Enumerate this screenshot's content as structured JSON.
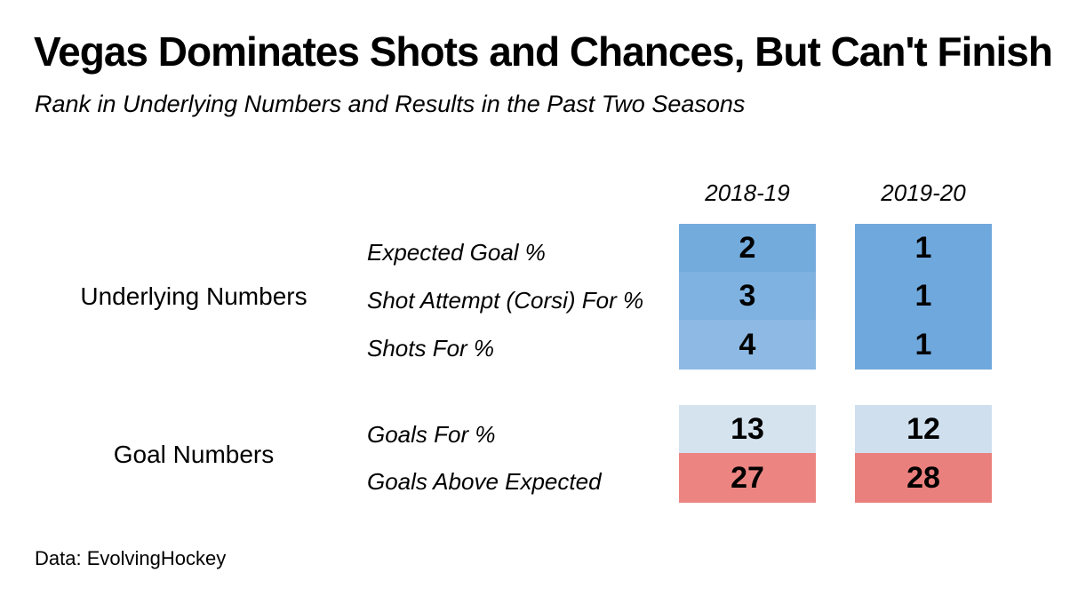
{
  "title": "Vegas Dominates Shots and Chances, But Can't Finish",
  "subtitle": "Rank in Underlying Numbers and Results in the Past Two Seasons",
  "source": "Data: EvolvingHockey",
  "chart_data": {
    "type": "table",
    "columns": [
      "2018-19",
      "2019-20"
    ],
    "groups": [
      {
        "name": "Underlying Numbers",
        "rows": [
          {
            "label": "Expected Goal %",
            "values": [
              2,
              1
            ]
          },
          {
            "label": "Shot Attempt (Corsi) For %",
            "values": [
              3,
              1
            ]
          },
          {
            "label": "Shots For %",
            "values": [
              4,
              1
            ]
          }
        ]
      },
      {
        "name": "Goal Numbers",
        "rows": [
          {
            "label": "Goals For %",
            "values": [
              13,
              12
            ]
          },
          {
            "label": "Goals Above Expected",
            "values": [
              27,
              28
            ]
          }
        ]
      }
    ],
    "colors": {
      "rank_1": "#6fa8dc",
      "rank_2": "#73abdd",
      "rank_3": "#7fb2e0",
      "rank_4": "#8db9e4",
      "rank_12": "#cfdfee",
      "rank_13": "#d5e3ef",
      "rank_27": "#ec8582",
      "rank_28": "#ea807d"
    }
  }
}
